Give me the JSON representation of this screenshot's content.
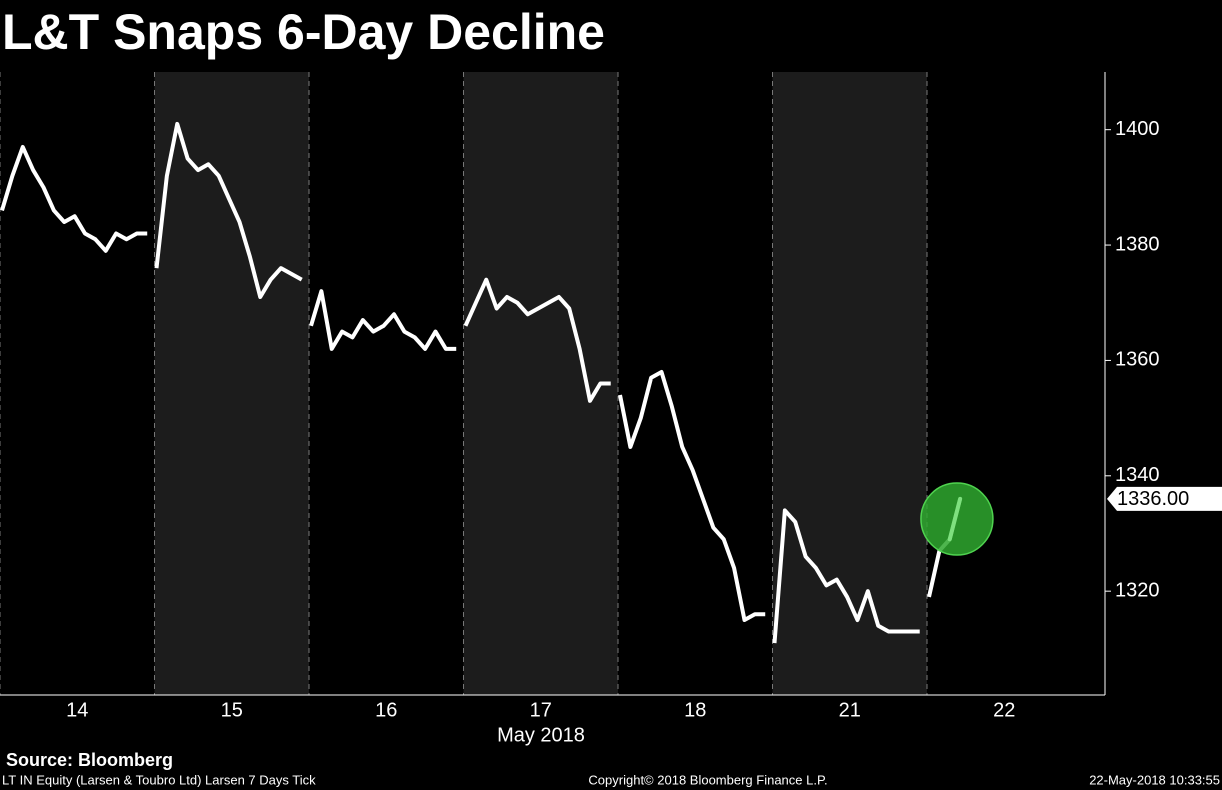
{
  "chart_data": {
    "type": "line",
    "title": "L&T Snaps 6-Day Decline",
    "categories": [
      "14",
      "15",
      "16",
      "17",
      "18",
      "21",
      "22"
    ],
    "x_label": "May 2018",
    "sessions": [
      [
        1386,
        1392,
        1397,
        1393,
        1390,
        1386,
        1384,
        1385,
        1382,
        1381,
        1379,
        1382,
        1381,
        1382,
        1382
      ],
      [
        1376,
        1392,
        1401,
        1395,
        1393,
        1394,
        1392,
        1388,
        1384,
        1378,
        1371,
        1374,
        1376,
        1375,
        1374
      ],
      [
        1366,
        1372,
        1362,
        1365,
        1364,
        1367,
        1365,
        1366,
        1368,
        1365,
        1364,
        1362,
        1365,
        1362,
        1362
      ],
      [
        1366,
        1370,
        1374,
        1369,
        1371,
        1370,
        1368,
        1369,
        1370,
        1371,
        1369,
        1362,
        1353,
        1356,
        1356
      ],
      [
        1354,
        1345,
        1350,
        1357,
        1358,
        1352,
        1345,
        1341,
        1336,
        1331,
        1329,
        1324,
        1315,
        1316,
        1316
      ],
      [
        1311,
        1334,
        1332,
        1326,
        1324,
        1321,
        1322,
        1319,
        1315,
        1320,
        1314,
        1313,
        1313,
        1313,
        1313
      ],
      [
        1319,
        1327,
        1329,
        1336
      ]
    ],
    "color": "#ffffff",
    "highlight_color": "#7fe07f",
    "ylim": [
      1302,
      1410
    ],
    "yticks": [
      1320,
      1340,
      1360,
      1380,
      1400
    ],
    "last_price": {
      "value": 1336,
      "label": "1336.00"
    },
    "source": "Source: Bloomberg",
    "footer_left": "LT IN Equity (Larsen & Toubro Ltd) Larsen 7 Days  Tick",
    "footer_center": "Copyright© 2018 Bloomberg Finance L.P.",
    "footer_right": "22-May-2018 10:33:55"
  }
}
